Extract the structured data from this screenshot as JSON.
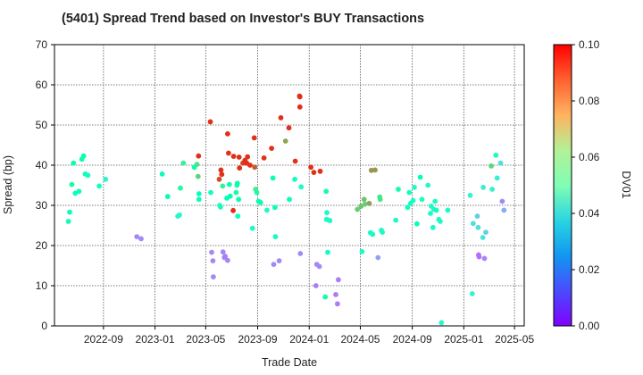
{
  "chart_data": {
    "type": "scatter",
    "title": "(5401)   Spread Trend based on Investor's BUY Transactions",
    "xlabel": "Trade Date",
    "ylabel": "Spread (bp)",
    "colorbar_label": "DV01",
    "x_ticks": [
      "2022-09",
      "2023-01",
      "2023-05",
      "2023-09",
      "2024-01",
      "2024-05",
      "2024-09",
      "2025-01",
      "2025-05"
    ],
    "y_ticks": [
      "0",
      "10",
      "20",
      "30",
      "40",
      "50",
      "60",
      "70"
    ],
    "colorbar_ticks": [
      "0.00",
      "0.02",
      "0.04",
      "0.06",
      "0.08",
      "0.10"
    ],
    "xlim": [
      "2022-05-08",
      "2025-05-24"
    ],
    "ylim": [
      0,
      70
    ],
    "clim": [
      0,
      0.1
    ],
    "colormap": "rainbow",
    "grid": true,
    "points": [
      {
        "x": "2022-06-10",
        "y": 26,
        "c": 0.048
      },
      {
        "x": "2022-06-13",
        "y": 28.3,
        "c": 0.048
      },
      {
        "x": "2022-06-18",
        "y": 35.2,
        "c": 0.054
      },
      {
        "x": "2022-06-22",
        "y": 40.5,
        "c": 0.052
      },
      {
        "x": "2022-06-26",
        "y": 33,
        "c": 0.048
      },
      {
        "x": "2022-07-05",
        "y": 33.5,
        "c": 0.048
      },
      {
        "x": "2022-07-12",
        "y": 41.5,
        "c": 0.052
      },
      {
        "x": "2022-07-16",
        "y": 42.3,
        "c": 0.052
      },
      {
        "x": "2022-07-20",
        "y": 37.8,
        "c": 0.048
      },
      {
        "x": "2022-07-26",
        "y": 37.5,
        "c": 0.046
      },
      {
        "x": "2022-08-22",
        "y": 34.8,
        "c": 0.046
      },
      {
        "x": "2022-09-06",
        "y": 36.5,
        "c": 0.042
      },
      {
        "x": "2022-11-19",
        "y": 22.2,
        "c": 0.018
      },
      {
        "x": "2022-11-29",
        "y": 21.7,
        "c": 0.018
      },
      {
        "x": "2023-01-18",
        "y": 37.8,
        "c": 0.048
      },
      {
        "x": "2023-01-31",
        "y": 32.2,
        "c": 0.05
      },
      {
        "x": "2023-02-24",
        "y": 27.3,
        "c": 0.042
      },
      {
        "x": "2023-02-28",
        "y": 27.6,
        "c": 0.042
      },
      {
        "x": "2023-03-02",
        "y": 34.3,
        "c": 0.056
      },
      {
        "x": "2023-03-09",
        "y": 40.5,
        "c": 0.06
      },
      {
        "x": "2023-04-04",
        "y": 39.5,
        "c": 0.052
      },
      {
        "x": "2023-04-10",
        "y": 40.2,
        "c": 0.064
      },
      {
        "x": "2023-04-14",
        "y": 42.3,
        "c": 0.094
      },
      {
        "x": "2023-04-15",
        "y": 32.9,
        "c": 0.048
      },
      {
        "x": "2023-04-15",
        "y": 31.5,
        "c": 0.048
      },
      {
        "x": "2023-04-13",
        "y": 37.2,
        "c": 0.068
      },
      {
        "x": "2023-05-12",
        "y": 50.8,
        "c": 0.094
      },
      {
        "x": "2023-05-13",
        "y": 33.2,
        "c": 0.046
      },
      {
        "x": "2023-05-15",
        "y": 18.3,
        "c": 0.018
      },
      {
        "x": "2023-05-18",
        "y": 16.2,
        "c": 0.018
      },
      {
        "x": "2023-05-19",
        "y": 12.2,
        "c": 0.018
      },
      {
        "x": "2023-06-02",
        "y": 36.5,
        "c": 0.09
      },
      {
        "x": "2023-06-03",
        "y": 30,
        "c": 0.044
      },
      {
        "x": "2023-06-05",
        "y": 29.6,
        "c": 0.046
      },
      {
        "x": "2023-06-06",
        "y": 38.8,
        "c": 0.094
      },
      {
        "x": "2023-06-08",
        "y": 37.7,
        "c": 0.094
      },
      {
        "x": "2023-06-10",
        "y": 34.8,
        "c": 0.06
      },
      {
        "x": "2023-06-11",
        "y": 18.4,
        "c": 0.018
      },
      {
        "x": "2023-06-14",
        "y": 17,
        "c": 0.018
      },
      {
        "x": "2023-06-16",
        "y": 17.3,
        "c": 0.016
      },
      {
        "x": "2023-06-20",
        "y": 31.8,
        "c": 0.05
      },
      {
        "x": "2023-06-22",
        "y": 16.3,
        "c": 0.018
      },
      {
        "x": "2023-06-22",
        "y": 47.8,
        "c": 0.094
      },
      {
        "x": "2023-06-24",
        "y": 43,
        "c": 0.094
      },
      {
        "x": "2023-06-26",
        "y": 35.2,
        "c": 0.052
      },
      {
        "x": "2023-06-28",
        "y": 32.3,
        "c": 0.05
      },
      {
        "x": "2023-07-05",
        "y": 28.7,
        "c": 0.094
      },
      {
        "x": "2023-07-06",
        "y": 42.2,
        "c": 0.094
      },
      {
        "x": "2023-07-12",
        "y": 33.2,
        "c": 0.056
      },
      {
        "x": "2023-07-14",
        "y": 35,
        "c": 0.054
      },
      {
        "x": "2023-07-15",
        "y": 35.5,
        "c": 0.052
      },
      {
        "x": "2023-07-16",
        "y": 27.3,
        "c": 0.048
      },
      {
        "x": "2023-07-18",
        "y": 31.5,
        "c": 0.052
      },
      {
        "x": "2023-07-19",
        "y": 42,
        "c": 0.094
      },
      {
        "x": "2023-07-20",
        "y": 39.3,
        "c": 0.094
      },
      {
        "x": "2023-07-28",
        "y": 40.5,
        "c": 0.092
      },
      {
        "x": "2023-08-02",
        "y": 41.2,
        "c": 0.094
      },
      {
        "x": "2023-08-06",
        "y": 40.5,
        "c": 0.094
      },
      {
        "x": "2023-08-08",
        "y": 42.1,
        "c": 0.094
      },
      {
        "x": "2023-08-14",
        "y": 40,
        "c": 0.094
      },
      {
        "x": "2023-08-20",
        "y": 24.3,
        "c": 0.044
      },
      {
        "x": "2023-08-24",
        "y": 46.8,
        "c": 0.094
      },
      {
        "x": "2023-08-25",
        "y": 39.5,
        "c": 0.088
      },
      {
        "x": "2023-08-27",
        "y": 34,
        "c": 0.062
      },
      {
        "x": "2023-08-30",
        "y": 33.2,
        "c": 0.056
      },
      {
        "x": "2023-09-03",
        "y": 31,
        "c": 0.05
      },
      {
        "x": "2023-09-08",
        "y": 30.7,
        "c": 0.052
      },
      {
        "x": "2023-09-16",
        "y": 41.8,
        "c": 0.094
      },
      {
        "x": "2023-09-23",
        "y": 28.8,
        "c": 0.044
      },
      {
        "x": "2023-10-04",
        "y": 44.2,
        "c": 0.094
      },
      {
        "x": "2023-10-07",
        "y": 36.8,
        "c": 0.052
      },
      {
        "x": "2023-10-09",
        "y": 15.3,
        "c": 0.018
      },
      {
        "x": "2023-10-12",
        "y": 29.5,
        "c": 0.048
      },
      {
        "x": "2023-10-13",
        "y": 22.2,
        "c": 0.046
      },
      {
        "x": "2023-10-22",
        "y": 16.2,
        "c": 0.018
      },
      {
        "x": "2023-10-26",
        "y": 51.8,
        "c": 0.094
      },
      {
        "x": "2023-11-06",
        "y": 46,
        "c": 0.078
      },
      {
        "x": "2023-11-14",
        "y": 49.3,
        "c": 0.094
      },
      {
        "x": "2023-11-15",
        "y": 31.5,
        "c": 0.048
      },
      {
        "x": "2023-11-28",
        "y": 36.5,
        "c": 0.046
      },
      {
        "x": "2023-11-29",
        "y": 41,
        "c": 0.094
      },
      {
        "x": "2023-12-09",
        "y": 57.2,
        "c": 0.094
      },
      {
        "x": "2023-12-10",
        "y": 57,
        "c": 0.094
      },
      {
        "x": "2023-12-10",
        "y": 54.5,
        "c": 0.094
      },
      {
        "x": "2023-12-13",
        "y": 34.6,
        "c": 0.044
      },
      {
        "x": "2023-12-11",
        "y": 18,
        "c": 0.018
      },
      {
        "x": "2024-01-05",
        "y": 39.5,
        "c": 0.094
      },
      {
        "x": "2024-01-12",
        "y": 38.2,
        "c": 0.094
      },
      {
        "x": "2024-01-17",
        "y": 10,
        "c": 0.016
      },
      {
        "x": "2024-01-19",
        "y": 15.3,
        "c": 0.018
      },
      {
        "x": "2024-01-25",
        "y": 14.8,
        "c": 0.018
      },
      {
        "x": "2024-01-27",
        "y": 38.5,
        "c": 0.094
      },
      {
        "x": "2024-02-08",
        "y": 7.2,
        "c": 0.054
      },
      {
        "x": "2024-02-10",
        "y": 33.5,
        "c": 0.054
      },
      {
        "x": "2024-02-11",
        "y": 26.5,
        "c": 0.044
      },
      {
        "x": "2024-02-12",
        "y": 28.2,
        "c": 0.044
      },
      {
        "x": "2024-02-14",
        "y": 18.3,
        "c": 0.046
      },
      {
        "x": "2024-02-17",
        "y": 26.3,
        "c": 0.044
      },
      {
        "x": "2024-02-19",
        "y": 26.2,
        "c": 0.044
      },
      {
        "x": "2024-03-04",
        "y": 7.8,
        "c": 0.016
      },
      {
        "x": "2024-03-08",
        "y": 5.5,
        "c": 0.016
      },
      {
        "x": "2024-03-10",
        "y": 11.5,
        "c": 0.016
      },
      {
        "x": "2024-04-24",
        "y": 29,
        "c": 0.07
      },
      {
        "x": "2024-05-03",
        "y": 29.8,
        "c": 0.072
      },
      {
        "x": "2024-05-05",
        "y": 18.5,
        "c": 0.044
      },
      {
        "x": "2024-05-10",
        "y": 31.5,
        "c": 0.072
      },
      {
        "x": "2024-05-12",
        "y": 30.3,
        "c": 0.07
      },
      {
        "x": "2024-05-22",
        "y": 30.5,
        "c": 0.078
      },
      {
        "x": "2024-05-25",
        "y": 23.2,
        "c": 0.044
      },
      {
        "x": "2024-05-27",
        "y": 38.7,
        "c": 0.08
      },
      {
        "x": "2024-05-30",
        "y": 22.8,
        "c": 0.046
      },
      {
        "x": "2024-06-05",
        "y": 38.8,
        "c": 0.08
      },
      {
        "x": "2024-06-12",
        "y": 17,
        "c": 0.022
      },
      {
        "x": "2024-06-16",
        "y": 32.1,
        "c": 0.064
      },
      {
        "x": "2024-06-17",
        "y": 31.5,
        "c": 0.064
      },
      {
        "x": "2024-06-20",
        "y": 23.8,
        "c": 0.044
      },
      {
        "x": "2024-06-22",
        "y": 23.3,
        "c": 0.044
      },
      {
        "x": "2024-07-24",
        "y": 26.3,
        "c": 0.044
      },
      {
        "x": "2024-07-30",
        "y": 34,
        "c": 0.054
      },
      {
        "x": "2024-08-21",
        "y": 29.5,
        "c": 0.046
      },
      {
        "x": "2024-08-25",
        "y": 33.2,
        "c": 0.046
      },
      {
        "x": "2024-08-28",
        "y": 30.5,
        "c": 0.046
      },
      {
        "x": "2024-09-03",
        "y": 31.2,
        "c": 0.044
      },
      {
        "x": "2024-09-06",
        "y": 34.5,
        "c": 0.042
      },
      {
        "x": "2024-09-12",
        "y": 25.4,
        "c": 0.048
      },
      {
        "x": "2024-09-20",
        "y": 37,
        "c": 0.05
      },
      {
        "x": "2024-09-24",
        "y": 31.5,
        "c": 0.044
      },
      {
        "x": "2024-10-08",
        "y": 35,
        "c": 0.042
      },
      {
        "x": "2024-10-14",
        "y": 28,
        "c": 0.044
      },
      {
        "x": "2024-10-16",
        "y": 29.8,
        "c": 0.044
      },
      {
        "x": "2024-10-20",
        "y": 24.5,
        "c": 0.044
      },
      {
        "x": "2024-10-22",
        "y": 29,
        "c": 0.044
      },
      {
        "x": "2024-10-25",
        "y": 31,
        "c": 0.044
      },
      {
        "x": "2024-10-28",
        "y": 28.8,
        "c": 0.046
      },
      {
        "x": "2024-11-03",
        "y": 26.5,
        "c": 0.046
      },
      {
        "x": "2024-11-06",
        "y": 26,
        "c": 0.044
      },
      {
        "x": "2024-11-09",
        "y": 0.8,
        "c": 0.042
      },
      {
        "x": "2024-11-24",
        "y": 28.8,
        "c": 0.044
      },
      {
        "x": "2025-01-16",
        "y": 32.5,
        "c": 0.04
      },
      {
        "x": "2025-01-21",
        "y": 8,
        "c": 0.04
      },
      {
        "x": "2025-01-23",
        "y": 25.5,
        "c": 0.034
      },
      {
        "x": "2025-02-02",
        "y": 27.3,
        "c": 0.03
      },
      {
        "x": "2025-02-04",
        "y": 24.5,
        "c": 0.034
      },
      {
        "x": "2025-02-05",
        "y": 17.7,
        "c": 0.014
      },
      {
        "x": "2025-02-06",
        "y": 17.2,
        "c": 0.014
      },
      {
        "x": "2025-02-15",
        "y": 22,
        "c": 0.036
      },
      {
        "x": "2025-02-16",
        "y": 34.5,
        "c": 0.038
      },
      {
        "x": "2025-02-19",
        "y": 16.8,
        "c": 0.018
      },
      {
        "x": "2025-02-22",
        "y": 23.3,
        "c": 0.03
      },
      {
        "x": "2025-03-07",
        "y": 39.8,
        "c": 0.068
      },
      {
        "x": "2025-03-09",
        "y": 34,
        "c": 0.04
      },
      {
        "x": "2025-03-18",
        "y": 42.5,
        "c": 0.044
      },
      {
        "x": "2025-03-21",
        "y": 36.8,
        "c": 0.04
      },
      {
        "x": "2025-03-29",
        "y": 40.5,
        "c": 0.034
      },
      {
        "x": "2025-04-02",
        "y": 31,
        "c": 0.018
      },
      {
        "x": "2025-04-06",
        "y": 28.8,
        "c": 0.024
      }
    ]
  }
}
